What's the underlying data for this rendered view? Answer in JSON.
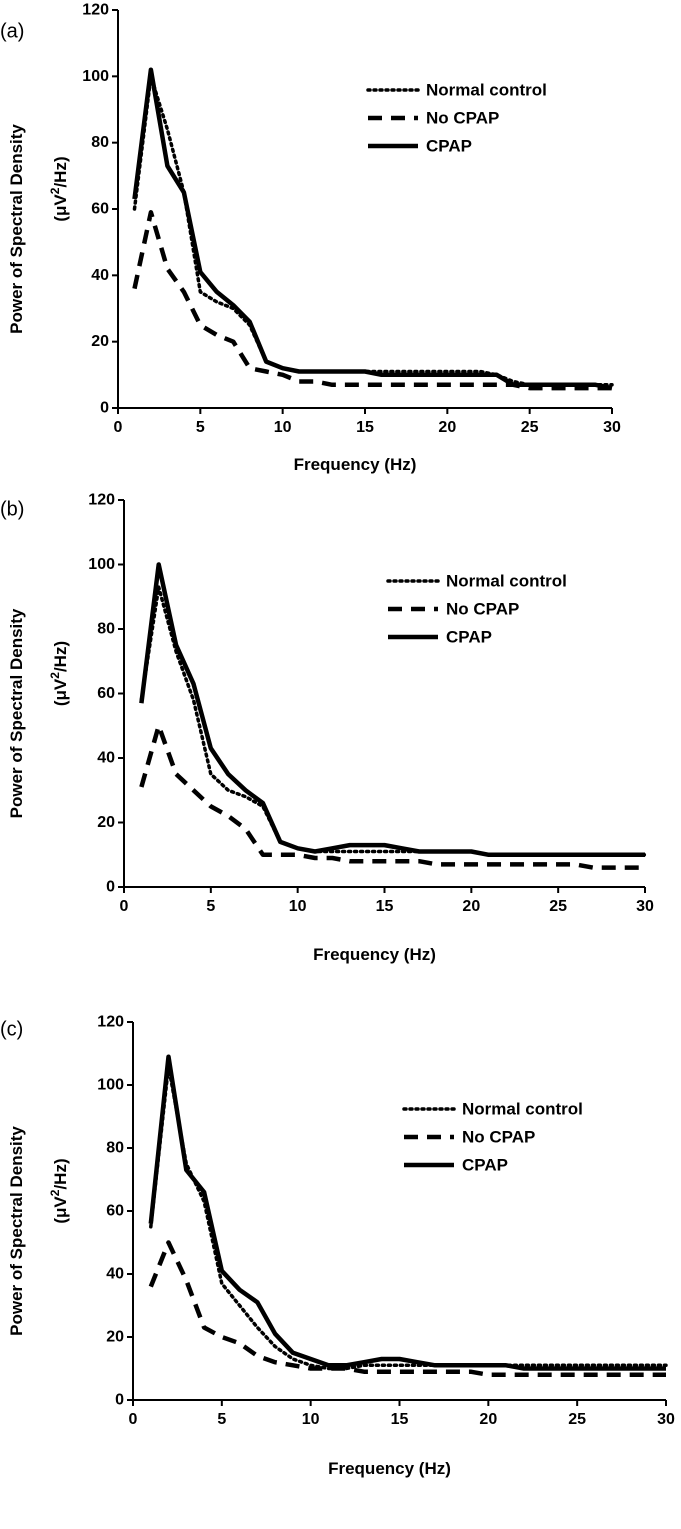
{
  "chart_data": [
    {
      "type": "line",
      "panel_label": "(a)",
      "xlabel": "Frequency (Hz)",
      "ylabel_line1": "Power of Spectral Density",
      "ylabel_line2_prefix": "(μV",
      "ylabel_line2_sup": "2",
      "ylabel_line2_suffix": "/Hz)",
      "xlim": [
        0,
        30
      ],
      "ylim": [
        0,
        120
      ],
      "xticks": [
        0,
        5,
        10,
        15,
        20,
        25,
        30
      ],
      "yticks": [
        0,
        20,
        40,
        60,
        80,
        100,
        120
      ],
      "grid": false,
      "legend_position": "top-right",
      "series": [
        {
          "name": "Normal control",
          "style": "dotted",
          "x": [
            1,
            2,
            3,
            4,
            5,
            6,
            7,
            8,
            9,
            10,
            11,
            12,
            13,
            14,
            15,
            16,
            17,
            18,
            19,
            20,
            21,
            22,
            23,
            24,
            25,
            26,
            27,
            28,
            29,
            30
          ],
          "y": [
            60,
            100,
            84,
            65,
            35,
            32,
            30,
            25,
            14,
            12,
            11,
            11,
            11,
            11,
            11,
            11,
            11,
            11,
            11,
            11,
            11,
            11,
            10,
            8,
            7,
            7,
            7,
            7,
            7,
            7
          ]
        },
        {
          "name": "No CPAP",
          "style": "dashed",
          "x": [
            1,
            2,
            3,
            4,
            5,
            6,
            7,
            8,
            9,
            10,
            11,
            12,
            13,
            14,
            15,
            16,
            17,
            18,
            19,
            20,
            21,
            22,
            23,
            24,
            25,
            26,
            27,
            28,
            29,
            30
          ],
          "y": [
            36,
            59,
            42,
            35,
            25,
            22,
            20,
            12,
            11,
            10,
            8,
            8,
            7,
            7,
            7,
            7,
            7,
            7,
            7,
            7,
            7,
            7,
            7,
            7,
            6,
            6,
            6,
            6,
            6,
            6
          ]
        },
        {
          "name": "CPAP",
          "style": "solid",
          "x": [
            1,
            2,
            3,
            4,
            5,
            6,
            7,
            8,
            9,
            10,
            11,
            12,
            13,
            14,
            15,
            16,
            17,
            18,
            19,
            20,
            21,
            22,
            23,
            24,
            25,
            26,
            27,
            28,
            29,
            30
          ],
          "y": [
            63,
            102,
            73,
            65,
            41,
            35,
            31,
            26,
            14,
            12,
            11,
            11,
            11,
            11,
            11,
            10,
            10,
            10,
            10,
            10,
            10,
            10,
            10,
            7,
            7,
            7,
            7,
            7,
            7,
            6
          ]
        }
      ]
    },
    {
      "type": "line",
      "panel_label": "(b)",
      "xlabel": "Frequency (Hz)",
      "ylabel_line1": "Power of Spectral Density",
      "ylabel_line2_prefix": "(μV",
      "ylabel_line2_sup": "2",
      "ylabel_line2_suffix": "/Hz)",
      "xlim": [
        0,
        30
      ],
      "ylim": [
        0,
        120
      ],
      "xticks": [
        0,
        5,
        10,
        15,
        20,
        25,
        30
      ],
      "yticks": [
        0,
        20,
        40,
        60,
        80,
        100,
        120
      ],
      "grid": false,
      "legend_position": "top-right",
      "series": [
        {
          "name": "Normal control",
          "style": "dotted",
          "x": [
            1,
            2,
            3,
            4,
            5,
            6,
            7,
            8,
            9,
            10,
            11,
            12,
            13,
            14,
            15,
            16,
            17,
            18,
            19,
            20,
            21,
            22,
            23,
            24,
            25,
            26,
            27,
            28,
            29,
            30
          ],
          "y": [
            58,
            93,
            73,
            58,
            35,
            30,
            28,
            25,
            14,
            12,
            11,
            11,
            11,
            11,
            11,
            11,
            11,
            11,
            11,
            11,
            10,
            10,
            10,
            10,
            10,
            10,
            10,
            10,
            10,
            10
          ]
        },
        {
          "name": "No CPAP",
          "style": "dashed",
          "x": [
            1,
            2,
            3,
            4,
            5,
            6,
            7,
            8,
            9,
            10,
            11,
            12,
            13,
            14,
            15,
            16,
            17,
            18,
            19,
            20,
            21,
            22,
            23,
            24,
            25,
            26,
            27,
            28,
            29,
            30
          ],
          "y": [
            31,
            50,
            35,
            30,
            25,
            22,
            18,
            10,
            10,
            10,
            9,
            9,
            8,
            8,
            8,
            8,
            8,
            7,
            7,
            7,
            7,
            7,
            7,
            7,
            7,
            7,
            6,
            6,
            6,
            6
          ]
        },
        {
          "name": "CPAP",
          "style": "solid",
          "x": [
            1,
            2,
            3,
            4,
            5,
            6,
            7,
            8,
            9,
            10,
            11,
            12,
            13,
            14,
            15,
            16,
            17,
            18,
            19,
            20,
            21,
            22,
            23,
            24,
            25,
            26,
            27,
            28,
            29,
            30
          ],
          "y": [
            57,
            100,
            75,
            63,
            43,
            35,
            30,
            26,
            14,
            12,
            11,
            12,
            13,
            13,
            13,
            12,
            11,
            11,
            11,
            11,
            10,
            10,
            10,
            10,
            10,
            10,
            10,
            10,
            10,
            10
          ]
        }
      ]
    },
    {
      "type": "line",
      "panel_label": "(c)",
      "xlabel": "Frequency (Hz)",
      "ylabel_line1": "Power of Spectral Density",
      "ylabel_line2_prefix": "(μV",
      "ylabel_line2_sup": "2",
      "ylabel_line2_suffix": "/Hz)",
      "xlim": [
        0,
        30
      ],
      "ylim": [
        0,
        120
      ],
      "xticks": [
        0,
        5,
        10,
        15,
        20,
        25,
        30
      ],
      "yticks": [
        0,
        20,
        40,
        60,
        80,
        100,
        120
      ],
      "grid": false,
      "legend_position": "top-right",
      "series": [
        {
          "name": "Normal control",
          "style": "dotted",
          "x": [
            1,
            2,
            3,
            4,
            5,
            6,
            7,
            8,
            9,
            10,
            11,
            12,
            13,
            14,
            15,
            16,
            17,
            18,
            19,
            20,
            21,
            22,
            23,
            24,
            25,
            26,
            27,
            28,
            29,
            30
          ],
          "y": [
            55,
            106,
            75,
            63,
            37,
            30,
            23,
            17,
            13,
            11,
            10,
            10,
            11,
            11,
            11,
            11,
            11,
            11,
            11,
            11,
            11,
            11,
            11,
            11,
            11,
            11,
            11,
            11,
            11,
            11
          ]
        },
        {
          "name": "No CPAP",
          "style": "dashed",
          "x": [
            1,
            2,
            3,
            4,
            5,
            6,
            7,
            8,
            9,
            10,
            11,
            12,
            13,
            14,
            15,
            16,
            17,
            18,
            19,
            20,
            21,
            22,
            23,
            24,
            25,
            26,
            27,
            28,
            29,
            30
          ],
          "y": [
            36,
            50,
            38,
            23,
            20,
            18,
            14,
            12,
            11,
            10,
            10,
            10,
            9,
            9,
            9,
            9,
            9,
            9,
            9,
            8,
            8,
            8,
            8,
            8,
            8,
            8,
            8,
            8,
            8,
            8
          ]
        },
        {
          "name": "CPAP",
          "style": "solid",
          "x": [
            1,
            2,
            3,
            4,
            5,
            6,
            7,
            8,
            9,
            10,
            11,
            12,
            13,
            14,
            15,
            16,
            17,
            18,
            19,
            20,
            21,
            22,
            23,
            24,
            25,
            26,
            27,
            28,
            29,
            30
          ],
          "y": [
            56,
            109,
            73,
            66,
            41,
            35,
            31,
            21,
            15,
            13,
            11,
            11,
            12,
            13,
            13,
            12,
            11,
            11,
            11,
            11,
            11,
            10,
            10,
            10,
            10,
            10,
            10,
            10,
            10,
            10
          ]
        }
      ]
    }
  ]
}
